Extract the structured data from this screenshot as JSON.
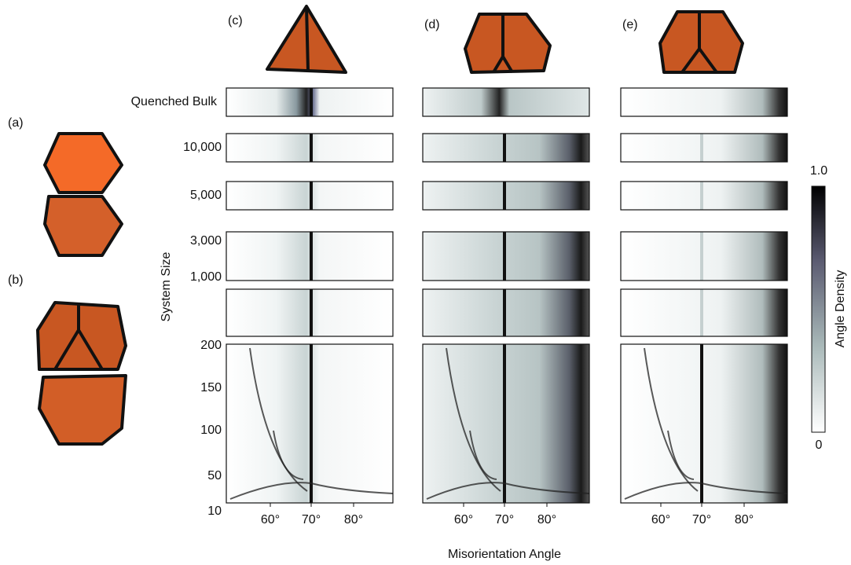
{
  "panels": [
    "(a)",
    "(b)",
    "(c)",
    "(d)",
    "(e)"
  ],
  "row_labels": [
    "Quenched Bulk",
    "10,000",
    "5,000",
    "3,000",
    "1,000"
  ],
  "y_axis_label": "System Size",
  "y_ticks": [
    "200",
    "150",
    "100",
    "50",
    "10"
  ],
  "x_ticks": [
    "60°",
    "70°",
    "80°"
  ],
  "x_axis_label": "Misorientation Angle",
  "colorbar": {
    "label": "Angle Density",
    "max": "1.0",
    "min": "0"
  }
}
